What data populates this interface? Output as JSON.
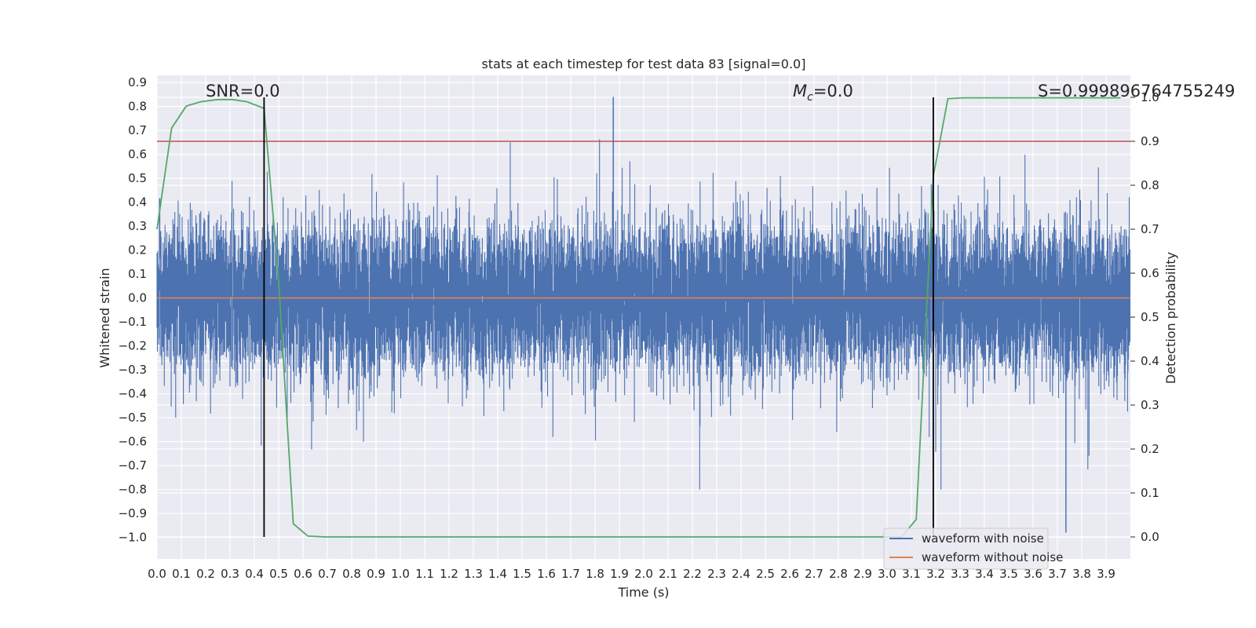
{
  "chart_data": {
    "type": "line",
    "title": "stats at each timestep for test data 83 [signal=0.0]",
    "xlabel": "Time (s)",
    "ylabel": "Whitened strain",
    "y2label": "Detection probability",
    "xlim": [
      0.0,
      4.0
    ],
    "ylim": [
      -1.09,
      0.93
    ],
    "y2lim": [
      -0.05,
      1.05
    ],
    "x_ticks": [
      "0.0",
      "0.1",
      "0.2",
      "0.3",
      "0.4",
      "0.5",
      "0.6",
      "0.7",
      "0.8",
      "0.9",
      "1.0",
      "1.1",
      "1.2",
      "1.3",
      "1.4",
      "1.5",
      "1.6",
      "1.7",
      "1.8",
      "1.9",
      "2.0",
      "2.1",
      "2.2",
      "2.3",
      "2.4",
      "2.5",
      "2.6",
      "2.7",
      "2.8",
      "2.9",
      "3.0",
      "3.1",
      "3.2",
      "3.3",
      "3.4",
      "3.5",
      "3.6",
      "3.7",
      "3.8",
      "3.9"
    ],
    "y_ticks": [
      "0.9",
      "0.8",
      "0.7",
      "0.6",
      "0.5",
      "0.4",
      "0.3",
      "0.2",
      "0.1",
      "0.0",
      "−0.1",
      "−0.2",
      "−0.3",
      "−0.4",
      "−0.5",
      "−0.6",
      "−0.7",
      "−0.8",
      "−0.9",
      "−1.0"
    ],
    "y2_ticks": [
      "1.0",
      "0.9",
      "0.8",
      "0.7",
      "0.6",
      "0.5",
      "0.4",
      "0.3",
      "0.2",
      "0.1",
      "0.0"
    ],
    "grid": true,
    "legend_placement": "lower-right",
    "annotations": {
      "snr": "SNR=0.0",
      "mc": "=0.0",
      "mc_symbol": "M",
      "mc_sub": "c",
      "s": "S=0.999896764755249"
    },
    "threshold": 0.9,
    "vlines": [
      0.44,
      3.19
    ],
    "series": [
      {
        "name": "waveform with noise",
        "color": "#4c72b0",
        "style": "dense noise, amplitude ~0.4, peaks to 0.84 / -0.98"
      },
      {
        "name": "waveform without noise",
        "color": "#dd8452",
        "values": "constant 0.0"
      },
      {
        "name": "",
        "color": "#55a868",
        "x": [
          0.0,
          0.06,
          0.12,
          0.18,
          0.25,
          0.31,
          0.37,
          0.44,
          0.5,
          0.56,
          0.62,
          0.69,
          0.75,
          3.0,
          3.06,
          3.12,
          3.19,
          3.25,
          3.31,
          3.37,
          3.44,
          3.5,
          3.56,
          3.62,
          3.69,
          3.75,
          3.81,
          3.87,
          3.93,
          3.96
        ],
        "values": [
          0.7,
          0.93,
          0.98,
          0.99,
          0.995,
          0.995,
          0.99,
          0.975,
          0.58,
          0.03,
          0.002,
          0.0,
          0.0,
          0.0,
          0.0,
          0.04,
          0.82,
          0.997,
          0.999,
          0.999,
          0.999,
          0.999,
          0.999,
          0.999,
          0.999,
          0.999,
          0.999,
          0.999,
          0.999,
          0.999
        ]
      },
      {
        "name": "",
        "color": "#c44e52",
        "values": "threshold 0.9"
      }
    ]
  }
}
